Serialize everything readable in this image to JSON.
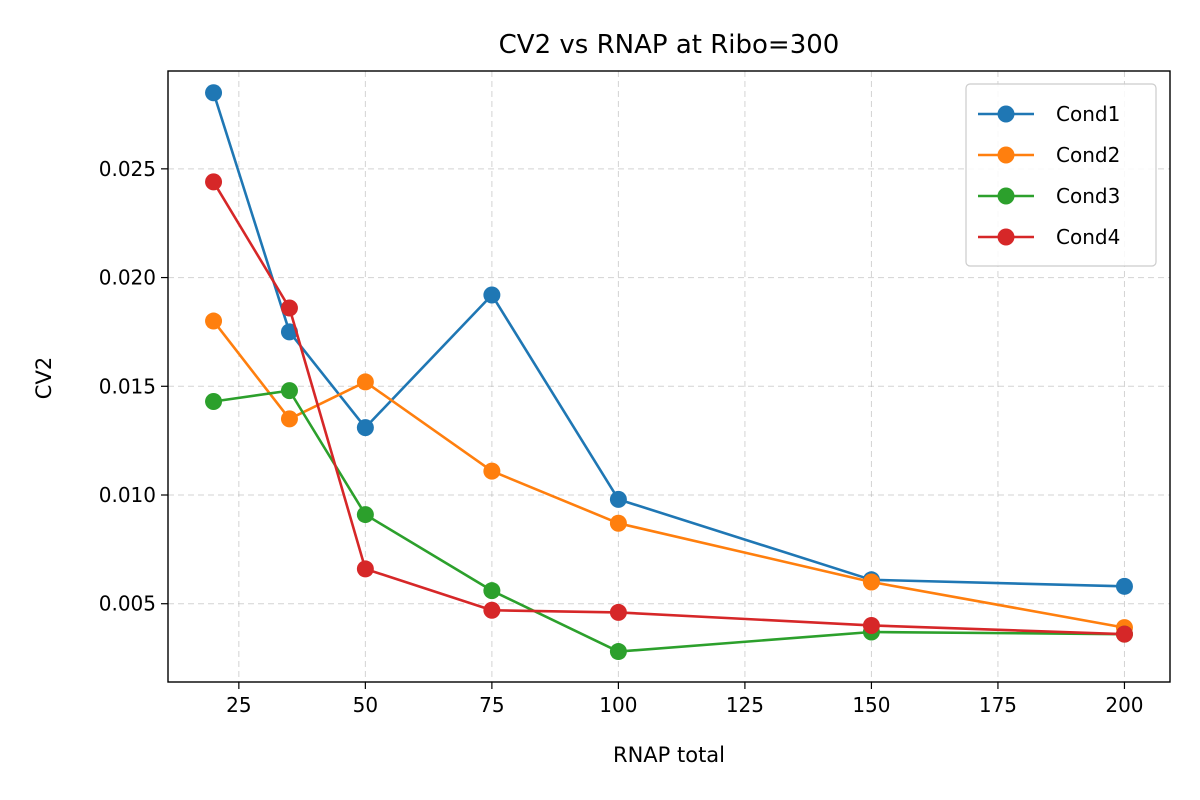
{
  "chart_data": {
    "type": "line",
    "title": "CV2 vs RNAP at Ribo=300",
    "xlabel": "RNAP total",
    "ylabel": "CV2",
    "xlim": [
      11,
      209
    ],
    "ylim": [
      0.0014,
      0.0295
    ],
    "xticks": [
      25,
      50,
      75,
      100,
      125,
      150,
      175,
      200
    ],
    "xtick_labels": [
      "25",
      "50",
      "75",
      "100",
      "125",
      "150",
      "175",
      "200"
    ],
    "yticks": [
      0.005,
      0.01,
      0.015,
      0.02,
      0.025
    ],
    "ytick_labels": [
      "0.005",
      "0.010",
      "0.015",
      "0.020",
      "0.025"
    ],
    "grid": true,
    "legend_position": "top-right",
    "x": [
      20,
      35,
      50,
      75,
      100,
      150,
      200
    ],
    "series": [
      {
        "name": "Cond1",
        "color": "#1f77b4",
        "values": [
          0.0285,
          0.0175,
          0.0131,
          0.0192,
          0.0098,
          0.0061,
          0.0058
        ]
      },
      {
        "name": "Cond2",
        "color": "#ff7f0e",
        "values": [
          0.018,
          0.0135,
          0.0152,
          0.0111,
          0.0087,
          0.006,
          0.0039
        ]
      },
      {
        "name": "Cond3",
        "color": "#2ca02c",
        "values": [
          0.0143,
          0.0148,
          0.0091,
          0.0056,
          0.0028,
          0.0037,
          0.0036
        ]
      },
      {
        "name": "Cond4",
        "color": "#d62728",
        "values": [
          0.0244,
          0.0186,
          0.0066,
          0.0047,
          0.0046,
          0.004,
          0.0036
        ]
      }
    ]
  }
}
